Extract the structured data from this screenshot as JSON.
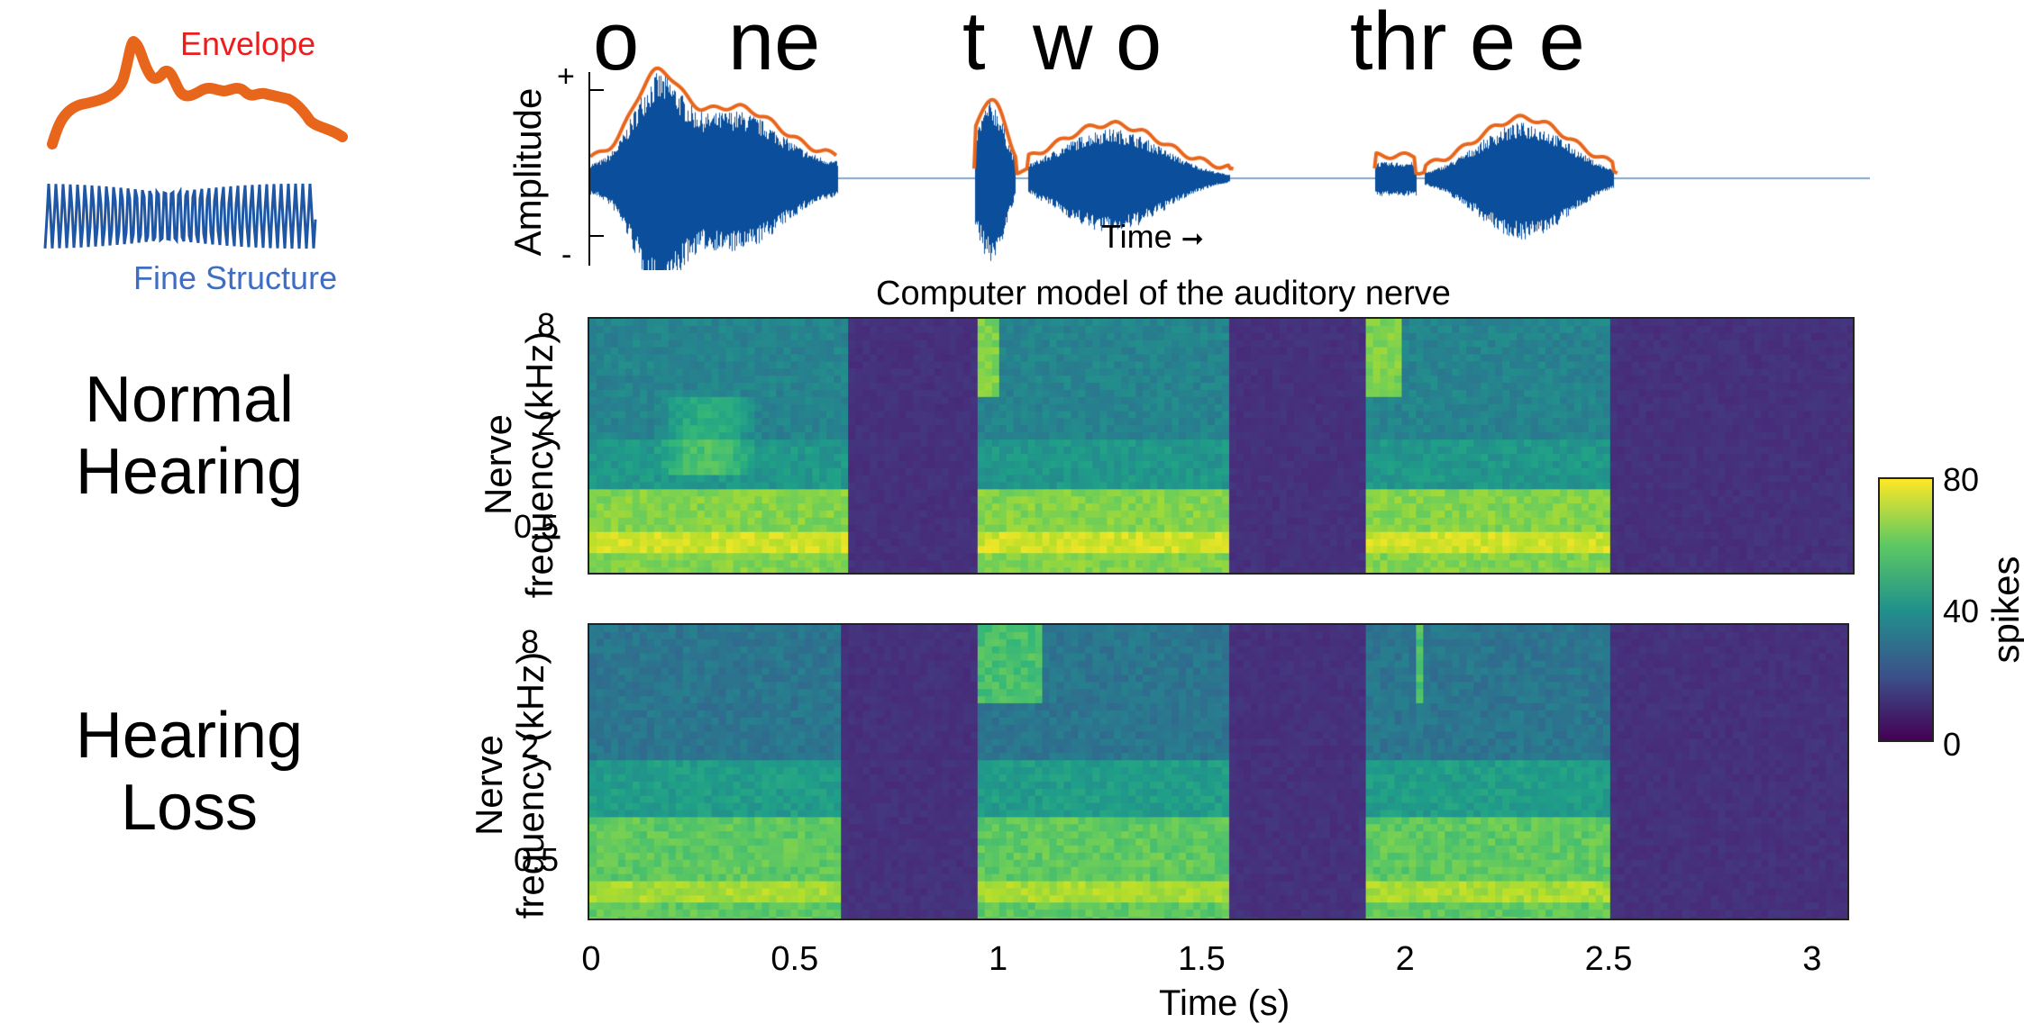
{
  "legend": {
    "envelope_label": "Envelope",
    "fine_structure_label": "Fine Structure",
    "envelope_color": "#e8661c",
    "fine_structure_color": "#1f57a4"
  },
  "words": [
    "o",
    "ne",
    "t",
    "w o",
    "thr e e"
  ],
  "rows": {
    "normal": "Normal\nHearing",
    "loss": "Hearing\nLoss"
  },
  "waveform": {
    "ylabel": "Amplitude",
    "plus": "+",
    "minus": "-",
    "time_label": "Time",
    "arrow": "➞"
  },
  "model_title": "Computer model of the auditory nerve",
  "nerve_axis": {
    "ylabel_line1": "Nerve",
    "ylabel_line2": "frequency (kHz)",
    "yticks": [
      "8",
      "2",
      "0.5"
    ]
  },
  "colorbar": {
    "label": "spikes",
    "ticks": [
      "80",
      "40",
      "0"
    ],
    "colormap": "viridis"
  },
  "chart_data": {
    "type": "heatmap",
    "title": "Computer model of the auditory nerve",
    "xlabel": "Time (s)",
    "ylabel": "Nerve frequency (kHz)",
    "xticks": [
      "0",
      "0.5",
      "1",
      "1.5",
      "2",
      "2.5",
      "3"
    ],
    "xlim": [
      0,
      3.1
    ],
    "clim": [
      0,
      80
    ],
    "panels": [
      "Normal Hearing",
      "Hearing Loss"
    ]
  }
}
